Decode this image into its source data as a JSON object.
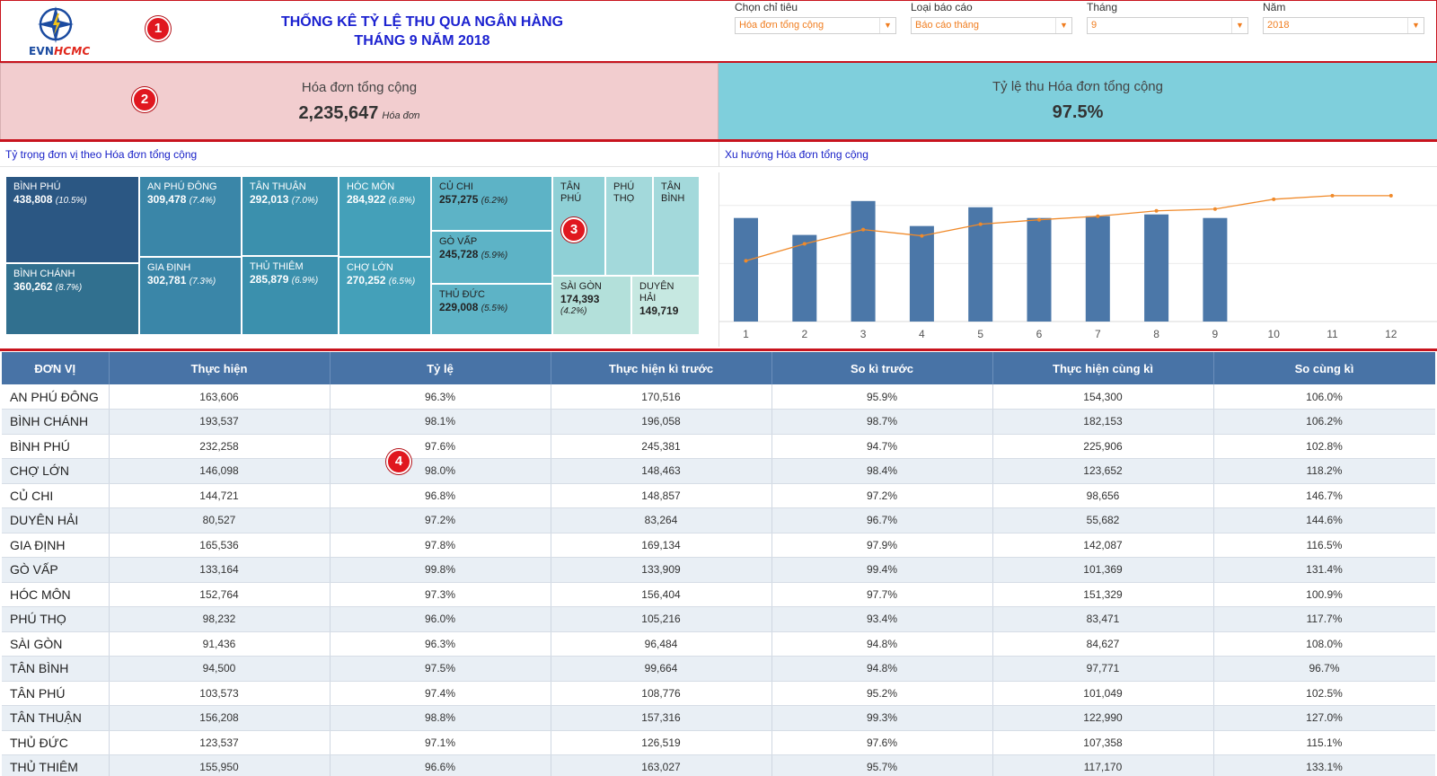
{
  "header": {
    "title_line1": "THỐNG KÊ TỶ LỆ THU QUA NGÂN HÀNG",
    "title_line2": "THÁNG 9 NĂM 2018",
    "logo_text_evn": "EVN",
    "logo_text_hcmc": "HCMC"
  },
  "badges": [
    "1",
    "2",
    "3",
    "4"
  ],
  "filters": [
    {
      "label": "Chọn chỉ tiêu",
      "value": "Hóa đơn tổng cộng"
    },
    {
      "label": "Loại báo cáo",
      "value": "Báo cáo tháng"
    },
    {
      "label": "Tháng",
      "value": "9"
    },
    {
      "label": "Năm",
      "value": "2018"
    }
  ],
  "kpi": {
    "left_label": "Hóa đơn tổng cộng",
    "left_value": "2,235,647",
    "left_unit": "Hóa đơn",
    "right_label": "Tỷ lệ thu Hóa đơn tổng cộng",
    "right_value": "97.5%"
  },
  "treemap": {
    "caption": "Tỷ trọng đơn vị theo Hóa đơn tổng cộng",
    "tiles": [
      {
        "name": "BÌNH PHÚ",
        "value": "438,808",
        "pct": "(10.5%)"
      },
      {
        "name": "BÌNH CHÁNH",
        "value": "360,262",
        "pct": "(8.7%)"
      },
      {
        "name": "AN PHÚ ĐÔNG",
        "value": "309,478",
        "pct": "(7.4%)"
      },
      {
        "name": "GIA ĐỊNH",
        "value": "302,781",
        "pct": "(7.3%)"
      },
      {
        "name": "TÂN THUẬN",
        "value": "292,013",
        "pct": "(7.0%)"
      },
      {
        "name": "THỦ THIÊM",
        "value": "285,879",
        "pct": "(6.9%)"
      },
      {
        "name": "HÓC MÔN",
        "value": "284,922",
        "pct": "(6.8%)"
      },
      {
        "name": "CHỢ LỚN",
        "value": "270,252",
        "pct": "(6.5%)"
      },
      {
        "name": "CỦ CHI",
        "value": "257,275",
        "pct": "(6.2%)"
      },
      {
        "name": "GÒ VẤP",
        "value": "245,728",
        "pct": "(5.9%)"
      },
      {
        "name": "THỦ ĐỨC",
        "value": "229,008",
        "pct": "(5.5%)"
      },
      {
        "name": "TÂN PHÚ",
        "value": "",
        "pct": ""
      },
      {
        "name": "PHÚ THỌ",
        "value": "",
        "pct": ""
      },
      {
        "name": "TÂN BÌNH",
        "value": "",
        "pct": ""
      },
      {
        "name": "SÀI GÒN",
        "value": "174,393",
        "pct": "(4.2%)"
      },
      {
        "name": "DUYÊN HẢI",
        "value": "149,719",
        "pct": ""
      }
    ]
  },
  "trend": {
    "caption": "Xu hướng Hóa đơn tổng cộng"
  },
  "chart_data": {
    "type": "bar",
    "categories": [
      "1",
      "2",
      "3",
      "4",
      "5",
      "6",
      "7",
      "8",
      "9",
      "10",
      "11",
      "12"
    ],
    "series": [
      {
        "values": [
          1.16,
          0.97,
          1.35,
          1.07,
          1.28,
          1.16,
          1.18,
          1.2,
          1.16,
          null,
          null,
          null
        ]
      },
      {
        "values": [
          0.68,
          0.87,
          1.03,
          0.96,
          1.09,
          1.14,
          1.18,
          1.24,
          1.26,
          1.37,
          1.41,
          1.41
        ]
      }
    ],
    "series_types": [
      "bar",
      "line"
    ],
    "colors": [
      "#4b77a8",
      "#f08a2a"
    ],
    "ylim": [
      0,
      1.65
    ],
    "grid": true
  },
  "table": {
    "headers": [
      "ĐƠN VỊ",
      "Thực hiện",
      "Tỷ lệ",
      "Thực hiện kì trước",
      "So kì trước",
      "Thực hiện cùng kì",
      "So cùng kì"
    ],
    "rows": [
      [
        "AN PHÚ ĐÔNG",
        "163,606",
        "96.3%",
        "170,516",
        "95.9%",
        "154,300",
        "106.0%"
      ],
      [
        "BÌNH CHÁNH",
        "193,537",
        "98.1%",
        "196,058",
        "98.7%",
        "182,153",
        "106.2%"
      ],
      [
        "BÌNH PHÚ",
        "232,258",
        "97.6%",
        "245,381",
        "94.7%",
        "225,906",
        "102.8%"
      ],
      [
        "CHỢ LỚN",
        "146,098",
        "98.0%",
        "148,463",
        "98.4%",
        "123,652",
        "118.2%"
      ],
      [
        "CỦ CHI",
        "144,721",
        "96.8%",
        "148,857",
        "97.2%",
        "98,656",
        "146.7%"
      ],
      [
        "DUYÊN HẢI",
        "80,527",
        "97.2%",
        "83,264",
        "96.7%",
        "55,682",
        "144.6%"
      ],
      [
        "GIA ĐỊNH",
        "165,536",
        "97.8%",
        "169,134",
        "97.9%",
        "142,087",
        "116.5%"
      ],
      [
        "GÒ VẤP",
        "133,164",
        "99.8%",
        "133,909",
        "99.4%",
        "101,369",
        "131.4%"
      ],
      [
        "HÓC MÔN",
        "152,764",
        "97.3%",
        "156,404",
        "97.7%",
        "151,329",
        "100.9%"
      ],
      [
        "PHÚ THỌ",
        "98,232",
        "96.0%",
        "105,216",
        "93.4%",
        "83,471",
        "117.7%"
      ],
      [
        "SÀI GÒN",
        "91,436",
        "96.3%",
        "96,484",
        "94.8%",
        "84,627",
        "108.0%"
      ],
      [
        "TÂN BÌNH",
        "94,500",
        "97.5%",
        "99,664",
        "94.8%",
        "97,771",
        "96.7%"
      ],
      [
        "TÂN PHÚ",
        "103,573",
        "97.4%",
        "108,776",
        "95.2%",
        "101,049",
        "102.5%"
      ],
      [
        "TÂN THUẬN",
        "156,208",
        "98.8%",
        "157,316",
        "99.3%",
        "122,990",
        "127.0%"
      ],
      [
        "THỦ ĐỨC",
        "123,537",
        "97.1%",
        "126,519",
        "97.6%",
        "107,358",
        "115.1%"
      ],
      [
        "THỦ THIÊM",
        "155,950",
        "96.6%",
        "163,027",
        "95.7%",
        "117,170",
        "133.1%"
      ]
    ]
  }
}
